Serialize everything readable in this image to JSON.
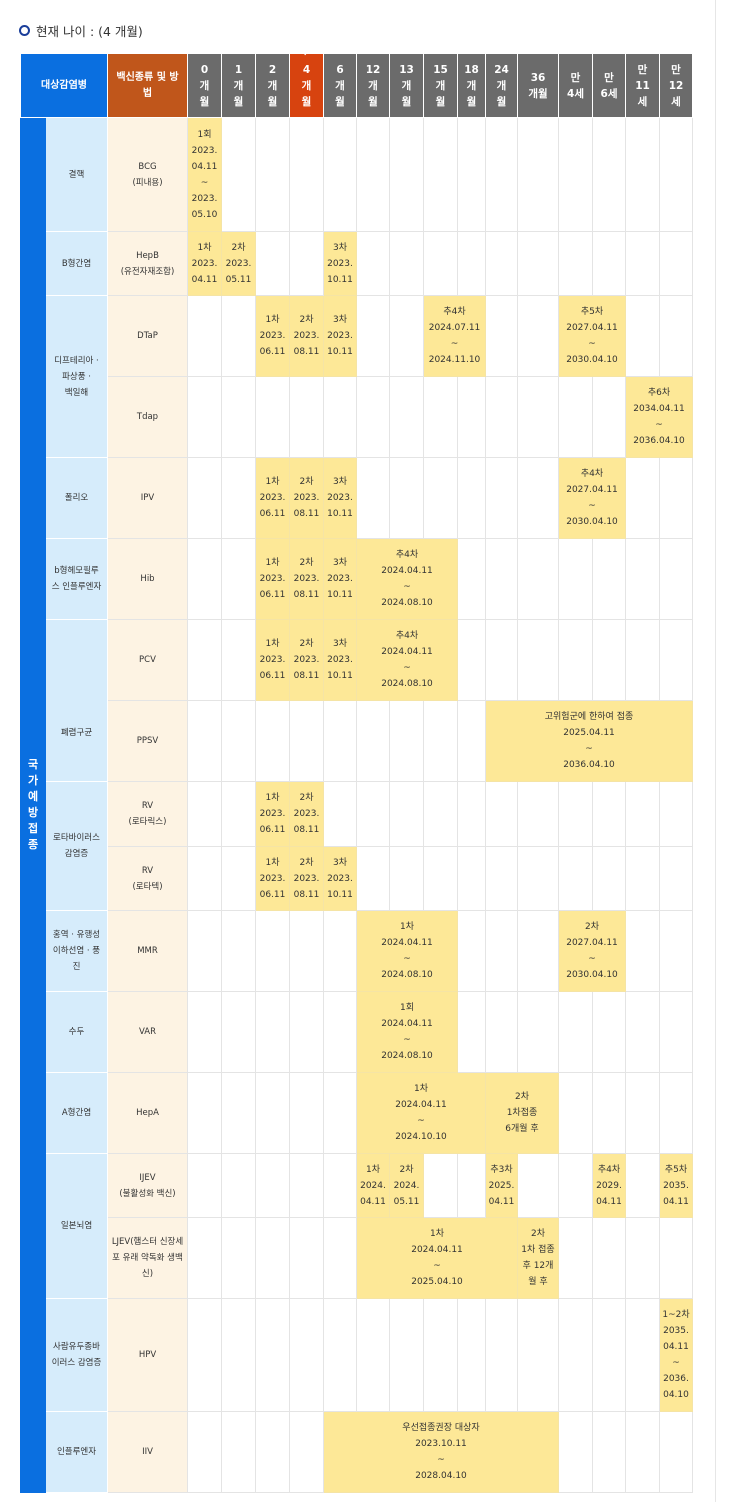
{
  "title": "현재 나이 : (4 개월)",
  "colors": {
    "category": "#0a6fe0",
    "vaccine_header": "#c0561b",
    "age_header": "#6b6b6b",
    "current_age": "#d7430f",
    "disease_bg": "#d6ecfb",
    "vaccine_bg": "#fdf3e3",
    "scheduled": "#fde897"
  },
  "header": {
    "disease": "대상감염병",
    "vaccine": "백신종류 및 방\n법",
    "current_marker": "✓",
    "current_index": 3,
    "ages": [
      "0\n개\n월",
      "1\n개\n월",
      "2\n개\n월",
      "4\n개\n월",
      "6\n개\n월",
      "12\n개\n월",
      "13\n개\n월",
      "15\n개\n월",
      "18\n개\n월",
      "24\n개\n월",
      "36\n개월",
      "만\n4세",
      "만\n6세",
      "만\n11\n세",
      "만\n12\n세"
    ]
  },
  "category": "국\n가\n예\n방\n접\n종",
  "diseases": [
    {
      "name": "결핵",
      "rows": 1
    },
    {
      "name": "B형간염",
      "rows": 1
    },
    {
      "name": "디프테리아 ·\n파상풍 ·\n백일해",
      "rows": 2
    },
    {
      "name": "폴리오",
      "rows": 1
    },
    {
      "name": "b형헤모필루\n스 인플루엔자",
      "rows": 1
    },
    {
      "name": "\n\n\n\n폐렴구균",
      "rows": 2
    },
    {
      "name": "로타바이러스\n감염증",
      "rows": 2
    },
    {
      "name": "홍역 · 유행성\n이하선염 · 풍\n진",
      "rows": 1
    },
    {
      "name": "수두",
      "rows": 1
    },
    {
      "name": "A형간염",
      "rows": 1
    },
    {
      "name": "일본뇌염",
      "rows": 2
    },
    {
      "name": "사람유두종바\n이러스 감염증",
      "rows": 1
    },
    {
      "name": "인플루엔자",
      "rows": 1
    }
  ],
  "vaccines": [
    {
      "name": "BCG\n(피내용)",
      "doses": [
        {
          "col": 0,
          "span": 1,
          "text": "1회\n2023.\n04.11\n~\n2023.\n05.10"
        }
      ]
    },
    {
      "name": "HepB\n(유전자재조합)",
      "doses": [
        {
          "col": 0,
          "span": 1,
          "text": "1차\n2023.\n04.11"
        },
        {
          "col": 1,
          "span": 1,
          "text": "2차\n2023.\n05.11"
        },
        {
          "col": 4,
          "span": 1,
          "text": "3차\n2023.\n10.11"
        }
      ]
    },
    {
      "name": "DTaP",
      "doses": [
        {
          "col": 2,
          "span": 1,
          "text": "1차\n2023.\n06.11"
        },
        {
          "col": 3,
          "span": 1,
          "text": "2차\n2023.\n08.11"
        },
        {
          "col": 4,
          "span": 1,
          "text": "3차\n2023.\n10.11"
        },
        {
          "col": 7,
          "span": 2,
          "text": "추4차\n2024.07.11\n~\n2024.11.10"
        },
        {
          "col": 11,
          "span": 2,
          "text": "추5차\n2027.04.11\n~\n2030.04.10"
        }
      ]
    },
    {
      "name": "Tdap",
      "doses": [
        {
          "col": 13,
          "span": 2,
          "text": "추6차\n2034.04.11\n~\n2036.04.10"
        }
      ]
    },
    {
      "name": "IPV",
      "doses": [
        {
          "col": 2,
          "span": 1,
          "text": "1차\n2023.\n06.11"
        },
        {
          "col": 3,
          "span": 1,
          "text": "2차\n2023.\n08.11"
        },
        {
          "col": 4,
          "span": 1,
          "text": "3차\n2023.\n10.11"
        },
        {
          "col": 11,
          "span": 2,
          "text": "추4차\n2027.04.11\n~\n2030.04.10"
        }
      ]
    },
    {
      "name": "Hib",
      "doses": [
        {
          "col": 2,
          "span": 1,
          "text": "1차\n2023.\n06.11"
        },
        {
          "col": 3,
          "span": 1,
          "text": "2차\n2023.\n08.11"
        },
        {
          "col": 4,
          "span": 1,
          "text": "3차\n2023.\n10.11"
        },
        {
          "col": 5,
          "span": 3,
          "text": "추4차\n2024.04.11\n~\n2024.08.10"
        }
      ]
    },
    {
      "name": "PCV",
      "doses": [
        {
          "col": 2,
          "span": 1,
          "text": "1차\n2023.\n06.11"
        },
        {
          "col": 3,
          "span": 1,
          "text": "2차\n2023.\n08.11"
        },
        {
          "col": 4,
          "span": 1,
          "text": "3차\n2023.\n10.11"
        },
        {
          "col": 5,
          "span": 3,
          "text": "추4차\n2024.04.11\n~\n2024.08.10"
        }
      ]
    },
    {
      "name": "PPSV",
      "doses": [
        {
          "col": 9,
          "span": 6,
          "text": "고위험군에 한하여 접종\n2025.04.11\n~\n2036.04.10"
        }
      ]
    },
    {
      "name": "RV\n(로타릭스)",
      "doses": [
        {
          "col": 2,
          "span": 1,
          "text": "1차\n2023.\n06.11"
        },
        {
          "col": 3,
          "span": 1,
          "text": "2차\n2023.\n08.11"
        }
      ]
    },
    {
      "name": "RV\n(로타텍)",
      "doses": [
        {
          "col": 2,
          "span": 1,
          "text": "1차\n2023.\n06.11"
        },
        {
          "col": 3,
          "span": 1,
          "text": "2차\n2023.\n08.11"
        },
        {
          "col": 4,
          "span": 1,
          "text": "3차\n2023.\n10.11"
        }
      ]
    },
    {
      "name": "MMR",
      "doses": [
        {
          "col": 5,
          "span": 3,
          "text": "1차\n2024.04.11\n~\n2024.08.10"
        },
        {
          "col": 11,
          "span": 2,
          "text": "2차\n2027.04.11\n~\n2030.04.10"
        }
      ]
    },
    {
      "name": "VAR",
      "doses": [
        {
          "col": 5,
          "span": 3,
          "text": "1회\n2024.04.11\n~\n2024.08.10"
        }
      ]
    },
    {
      "name": "HepA",
      "doses": [
        {
          "col": 5,
          "span": 4,
          "text": "1차\n2024.04.11\n~\n2024.10.10"
        },
        {
          "col": 9,
          "span": 2,
          "text": "2차\n1차접종\n6개월 후"
        }
      ]
    },
    {
      "name": "IJEV\n(불활성화 백신)",
      "doses": [
        {
          "col": 5,
          "span": 1,
          "text": "1차\n2024.\n04.11"
        },
        {
          "col": 6,
          "span": 1,
          "text": "2차\n2024.\n05.11"
        },
        {
          "col": 9,
          "span": 1,
          "text": "추3차\n2025.\n04.11"
        },
        {
          "col": 12,
          "span": 1,
          "text": "추4차\n2029.\n04.11"
        },
        {
          "col": 14,
          "span": 1,
          "text": "추5차\n2035.\n04.11"
        }
      ]
    },
    {
      "name": "LJEV(햄스터 신장세\n포 유래 약독화 생백\n신)",
      "doses": [
        {
          "col": 5,
          "span": 5,
          "text": "1차\n2024.04.11\n~\n2025.04.10"
        },
        {
          "col": 10,
          "span": 1,
          "text": "2차\n1차 접종\n후 12개\n월 후"
        }
      ]
    },
    {
      "name": "HPV",
      "doses": [
        {
          "col": 14,
          "span": 1,
          "text": "1~2차\n2035.\n04.11\n~\n2036.\n04.10"
        }
      ]
    },
    {
      "name": "IIV",
      "doses": [
        {
          "col": 4,
          "span": 7,
          "text": "우선접종권장 대상자\n2023.10.11\n~\n2028.04.10"
        }
      ]
    }
  ]
}
